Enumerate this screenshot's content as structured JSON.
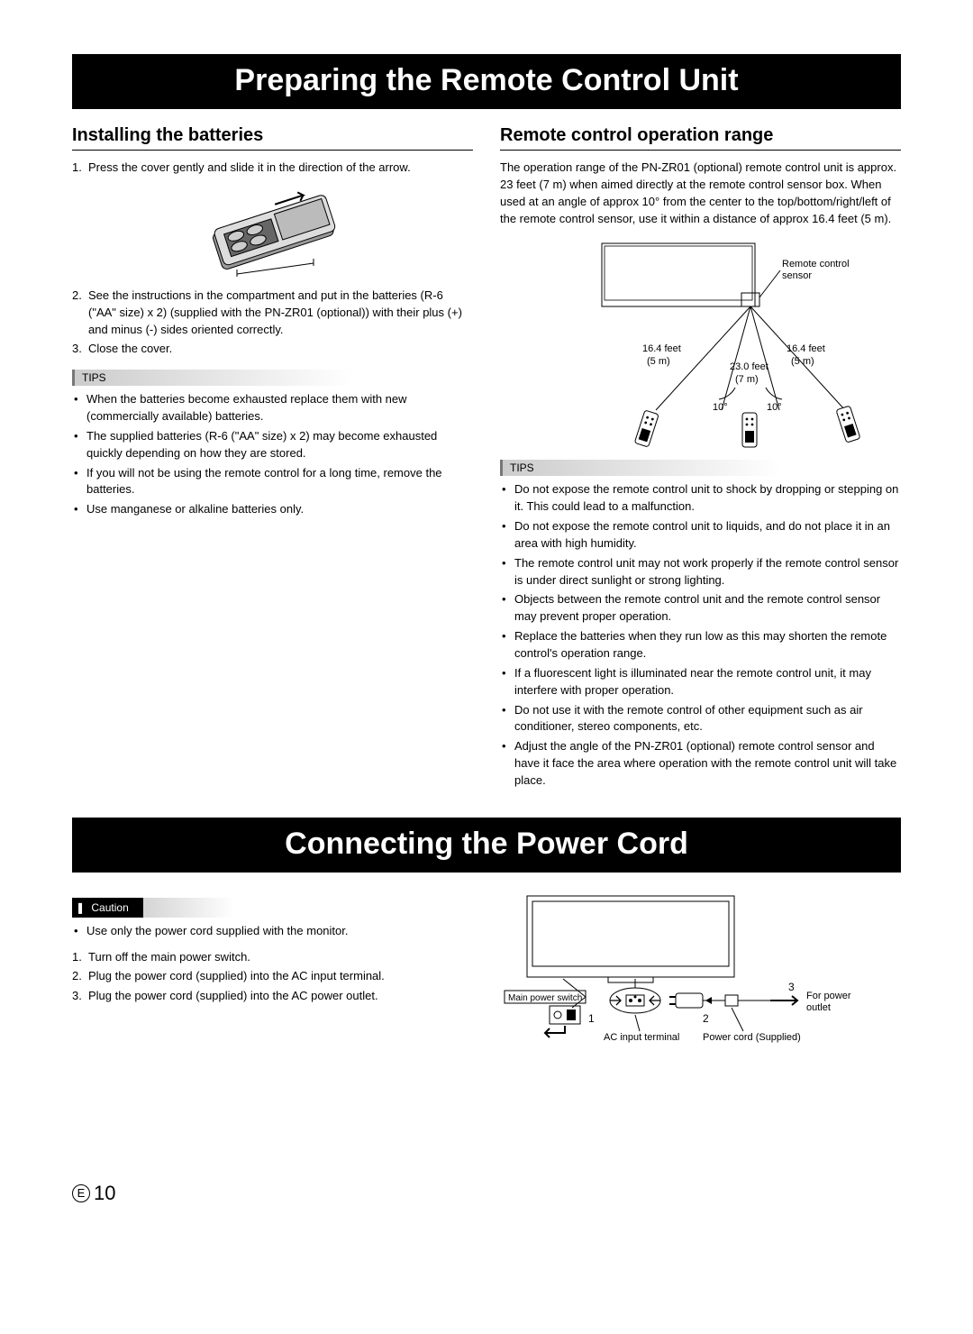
{
  "title1": "Preparing the Remote Control Unit",
  "left": {
    "heading": "Installing the batteries",
    "steps": [
      {
        "n": "1.",
        "t": "Press the cover gently and slide it in the direction of the arrow."
      },
      {
        "n": "2.",
        "t": "See the instructions in the compartment and put in the batteries (R-6 (\"AA\" size) x 2) (supplied with the PN-ZR01 (optional)) with their plus (+) and minus (-) sides oriented correctly."
      },
      {
        "n": "3.",
        "t": "Close the cover."
      }
    ],
    "tips_label": "TIPS",
    "tips": [
      "When the batteries become exhausted replace them with new (commercially available) batteries.",
      "The supplied batteries (R-6 (\"AA\" size) x 2) may become exhausted quickly depending on how they are stored.",
      "If you will not be using the remote control for a long time, remove the batteries.",
      "Use manganese or alkaline batteries only."
    ]
  },
  "right": {
    "heading": "Remote control operation range",
    "intro": "The operation range of the PN-ZR01 (optional) remote control unit is approx. 23 feet (7 m) when aimed directly at the remote control sensor box. When used at an angle of approx 10° from the center to the top/bottom/right/left of the remote control sensor, use it within a distance of approx 16.4 feet (5 m).",
    "diagram": {
      "sensor_label": "Remote control sensor",
      "left_dist": "16.4 feet",
      "left_dist2": "(5 m)",
      "right_dist": "16.4 feet",
      "right_dist2": "(5 m)",
      "center_dist": "23.0 feet",
      "center_dist2": "(7 m)",
      "angle_left": "10°",
      "angle_right": "10°"
    },
    "tips_label": "TIPS",
    "tips": [
      "Do not expose the remote control unit to shock by dropping or stepping on it. This could lead to a malfunction.",
      "Do not expose the remote control unit to liquids, and do not place it in an area with high humidity.",
      "The remote control unit may not work properly if the remote control sensor is under direct sunlight or strong lighting.",
      "Objects between the remote control unit and the remote control sensor may prevent proper operation.",
      "Replace the batteries when they run low as this may shorten the remote control's operation range.",
      "If a fluorescent light is illuminated near the remote control unit, it may interfere with proper operation.",
      "Do not use it with the remote control of other equipment such as air conditioner, stereo components, etc.",
      "Adjust the angle of the PN-ZR01 (optional) remote control sensor and have it face the area where operation with the remote control unit will take place."
    ]
  },
  "title2": "Connecting the Power Cord",
  "power": {
    "caution_label": "Caution",
    "caution": [
      "Use only the power cord supplied with the monitor."
    ],
    "steps": [
      {
        "n": "1.",
        "t": "Turn off the main power switch."
      },
      {
        "n": "2.",
        "t": "Plug the power cord (supplied) into the AC input terminal."
      },
      {
        "n": "3.",
        "t": "Plug the power cord (supplied) into the AC power outlet."
      }
    ],
    "diagram": {
      "main_switch": "Main power switch",
      "n1": "1",
      "n2": "2",
      "n3": "3",
      "for_outlet": "For power outlet",
      "ac_input": "AC input terminal",
      "cord": "Power cord (Supplied)"
    }
  },
  "page": {
    "e": "E",
    "num": "10"
  }
}
